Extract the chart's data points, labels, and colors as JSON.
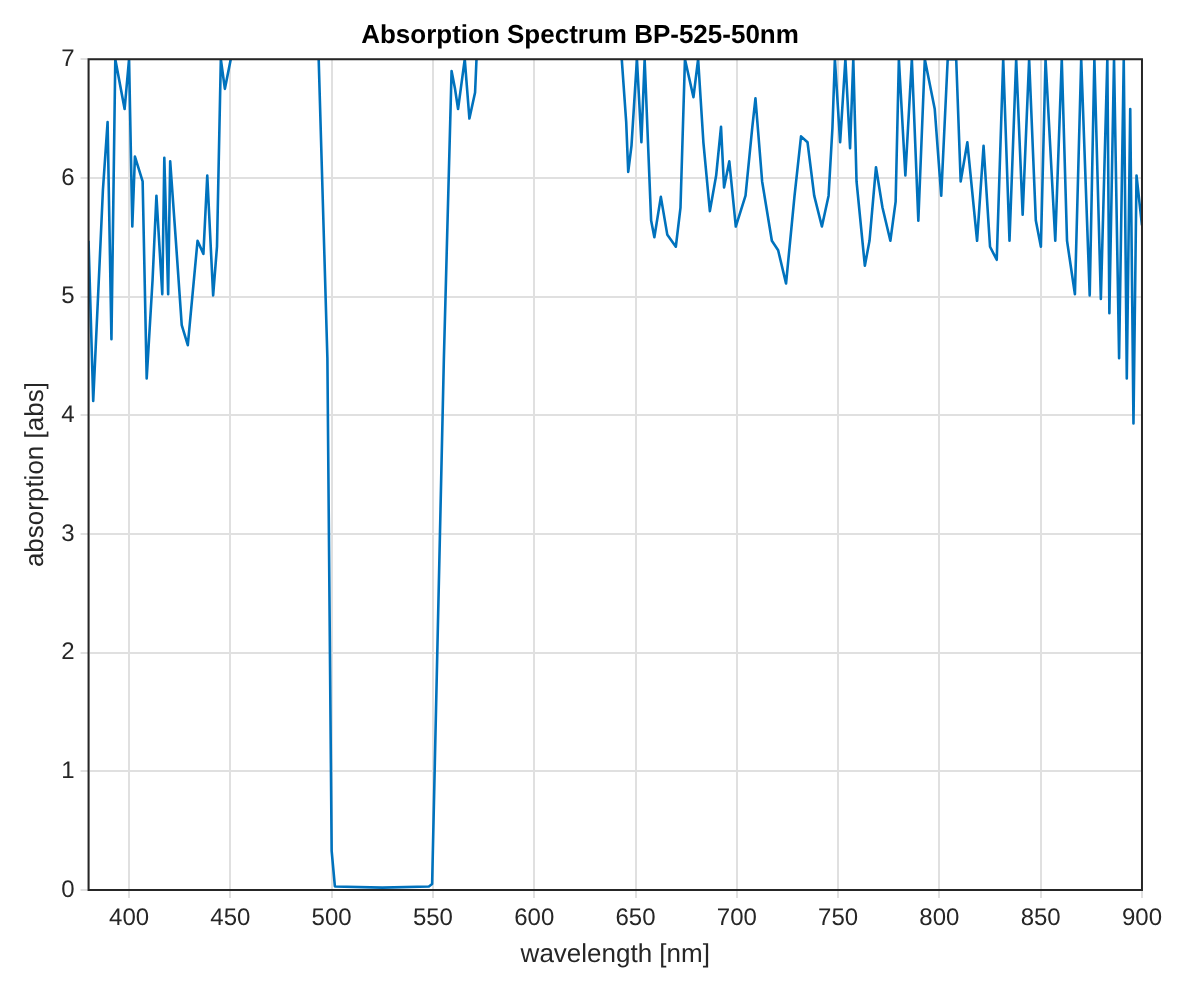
{
  "chart_data": {
    "type": "line",
    "title": "Absorption Spectrum BP-525-50nm",
    "xlabel": "wavelength [nm]",
    "ylabel": "absorption [abs]",
    "xlim": [
      380,
      900
    ],
    "xticks": [
      400,
      450,
      500,
      550,
      600,
      650,
      700,
      750,
      800,
      850,
      900
    ],
    "ylim": [
      0,
      7
    ],
    "yticks": [
      0,
      1,
      2,
      3,
      4,
      5,
      6,
      7
    ],
    "grid": true,
    "marker": "none",
    "line_style": "solid",
    "series": [
      {
        "color": "#0072bd",
        "x": [
          380,
          382.3,
          385.5,
          387.1,
          389.4,
          391.3,
          393.2,
          397.8,
          400,
          401.6,
          402.9,
          406.7,
          408.7,
          411.6,
          413.5,
          416.4,
          417.4,
          419.3,
          420.3,
          423.1,
          426,
          429,
          433.8,
          436.7,
          438.6,
          441.5,
          443.4,
          445.3,
          447.3,
          450.2,
          470,
          493.6,
          497.9,
          500,
          501.6,
          525,
          548,
          549.6,
          555.4,
          559.2,
          560.9,
          562.4,
          565.7,
          568,
          570.8,
          571.5,
          610,
          643.2,
          645.4,
          646.4,
          648,
          650.7,
          652.9,
          654.5,
          657.7,
          659.3,
          662.5,
          665.7,
          669.9,
          672.2,
          674.4,
          678.6,
          680.9,
          683.5,
          686.7,
          689.8,
          692.2,
          693.7,
          696.3,
          699.5,
          704.3,
          707.6,
          709.2,
          712.5,
          717.3,
          720.4,
          724.3,
          728.5,
          731.7,
          734.9,
          738.2,
          742,
          745.3,
          747.2,
          748.4,
          751,
          753.6,
          755.9,
          757.5,
          759.1,
          763.2,
          765.5,
          768.7,
          771.9,
          775.8,
          778.4,
          780,
          783.2,
          786.4,
          789.6,
          792.8,
          797.7,
          800.9,
          804.1,
          808.3,
          810.5,
          813.8,
          818.6,
          821.8,
          825,
          828.3,
          831.5,
          834.6,
          837.9,
          841.1,
          844.3,
          847.6,
          850.1,
          852.4,
          857.2,
          860.4,
          863,
          866.9,
          870,
          874.2,
          876.5,
          879.7,
          882.9,
          883.9,
          886.2,
          888.7,
          891,
          892.5,
          894.2,
          895.8,
          897.3,
          900
        ],
        "values": [
          5.47,
          4.12,
          5.3,
          5.9,
          6.47,
          4.64,
          7,
          6.58,
          7,
          5.59,
          6.18,
          5.97,
          4.31,
          5.14,
          5.85,
          5.02,
          6.17,
          5.02,
          6.14,
          5.47,
          4.76,
          4.59,
          5.47,
          5.36,
          6.02,
          5.01,
          5.42,
          7,
          6.75,
          7,
          null,
          7,
          4.48,
          0.33,
          0.03,
          0.02,
          0.03,
          0.05,
          4.48,
          6.9,
          6.75,
          6.58,
          7,
          6.5,
          6.72,
          7,
          null,
          7,
          6.47,
          6.05,
          6.27,
          7,
          6.3,
          7,
          5.64,
          5.5,
          5.84,
          5.52,
          5.42,
          5.75,
          7,
          6.68,
          7,
          6.3,
          5.72,
          6.02,
          6.43,
          5.92,
          6.14,
          5.59,
          5.85,
          6.42,
          6.67,
          5.97,
          5.47,
          5.39,
          5.11,
          5.85,
          6.35,
          6.3,
          5.85,
          5.59,
          5.85,
          6.42,
          7,
          6.3,
          7,
          6.25,
          7,
          5.97,
          5.26,
          5.47,
          6.09,
          5.75,
          5.47,
          5.8,
          7,
          6.02,
          7,
          5.64,
          7,
          6.58,
          5.85,
          7,
          7,
          5.97,
          6.3,
          5.47,
          6.27,
          5.42,
          5.31,
          7,
          5.47,
          7,
          5.69,
          7,
          5.64,
          5.42,
          7,
          5.47,
          7,
          5.47,
          5.02,
          7,
          5.01,
          7,
          4.98,
          7,
          4.86,
          7,
          4.48,
          7,
          4.31,
          6.58,
          3.93,
          6.02,
          5.6
        ]
      }
    ]
  }
}
